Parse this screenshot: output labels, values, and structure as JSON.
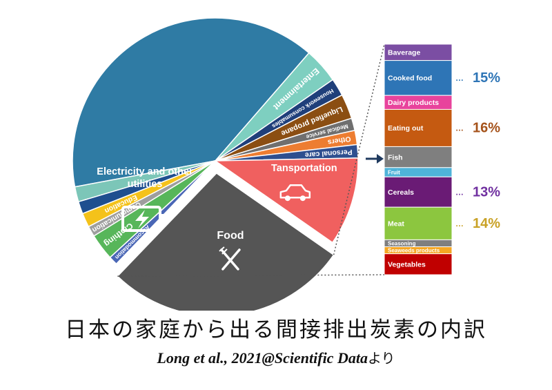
{
  "chart_data": [
    {
      "type": "pie",
      "unit_note": "",
      "slices": [
        {
          "label": "Electricity and other utilities",
          "share": 0.393,
          "color": "#2f7ba4",
          "icon": "battery-icon"
        },
        {
          "label": "Entertainment",
          "share": 0.04,
          "color": "#7ecfc0"
        },
        {
          "label": "Housework consumables",
          "share": 0.02,
          "color": "#1f3f7a"
        },
        {
          "label": "Liquefied propane",
          "share": 0.028,
          "color": "#8b4e12"
        },
        {
          "label": "Medical service",
          "share": 0.014,
          "color": "#6f6f6f"
        },
        {
          "label": "Others",
          "share": 0.016,
          "color": "#ed7d31"
        },
        {
          "label": "Personal care",
          "share": 0.015,
          "color": "#2e4f8f"
        },
        {
          "label": "Tansportation",
          "share": 0.1,
          "color": "#f0605f",
          "icon": "car-icon"
        },
        {
          "label": "Food",
          "share": 0.275,
          "color": "#555555",
          "icon": "fork-knife-icon",
          "exploded": true
        },
        {
          "label": "Accommodation",
          "share": 0.01,
          "color": "#4a67b6"
        },
        {
          "label": "Clothing",
          "share": 0.03,
          "color": "#57b65a"
        },
        {
          "label": "Communication",
          "share": 0.012,
          "color": "#9e9e9e"
        },
        {
          "label": "Education",
          "share": 0.016,
          "color": "#f4c21a"
        },
        {
          "label": "",
          "share": 0.014,
          "color": "#1f4f8f"
        },
        {
          "label": "",
          "share": 0.017,
          "color": "#7cc6b8"
        }
      ]
    },
    {
      "type": "bar",
      "orientation": "stacked-vertical",
      "parent": "Food",
      "segments": [
        {
          "label": "Baverage",
          "share": 0.07,
          "color": "#7b4ea3",
          "text_color": "#ffffff"
        },
        {
          "label": "Cooked food",
          "share": 0.15,
          "color": "#2e75b6",
          "text_color": "#ffffff",
          "callout": "15%",
          "callout_color": "#2e75b6"
        },
        {
          "label": "Dairy products",
          "share": 0.06,
          "color": "#e8439c",
          "text_color": "#ffffff"
        },
        {
          "label": "Eating out",
          "share": 0.16,
          "color": "#c55a11",
          "text_color": "#ffffff",
          "callout": "16%",
          "callout_color": "#a5521a"
        },
        {
          "label": "Fish",
          "share": 0.09,
          "color": "#7f7f7f",
          "text_color": "#ffffff"
        },
        {
          "label": "Fruit",
          "share": 0.04,
          "color": "#4fb3d9",
          "text_color": "#ffffff"
        },
        {
          "label": "Cereals",
          "share": 0.13,
          "color": "#6a1b75",
          "text_color": "#ffffff",
          "callout": "13%",
          "callout_color": "#7030a0"
        },
        {
          "label": "Meat",
          "share": 0.14,
          "color": "#8cc63f",
          "text_color": "#ffffff",
          "callout": "14%",
          "callout_color": "#c9a227"
        },
        {
          "label": "Seasoning",
          "share": 0.03,
          "color": "#7f7f7f",
          "text_color": "#ffffff"
        },
        {
          "label": "Seaweeds products",
          "share": 0.03,
          "color": "#f5a623",
          "text_color": "#ffffff"
        },
        {
          "label": "Vegetables",
          "share": 0.09,
          "color": "#c00000",
          "text_color": "#ffffff"
        }
      ]
    }
  ],
  "caption": {
    "title": "日本の家庭から出る間接排出炭素の内訳",
    "source_italic": "Long et al., 2021@Scientific Data",
    "source_suffix": "より"
  }
}
